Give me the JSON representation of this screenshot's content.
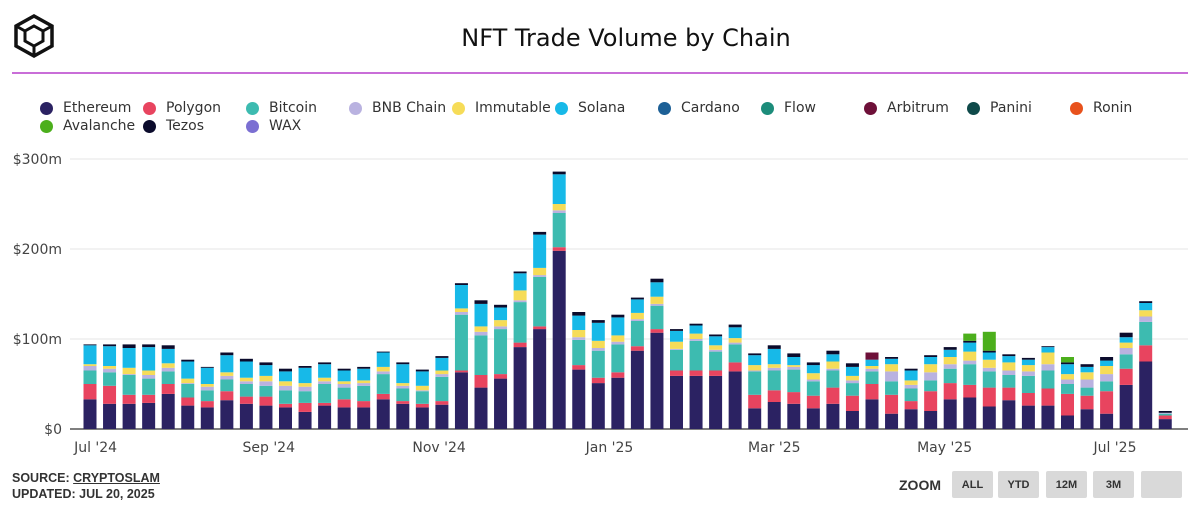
{
  "header": {
    "title": "NFT Trade Volume by Chain"
  },
  "footer": {
    "source_prefix": "SOURCE: ",
    "source_link": "CRYPTOSLAM",
    "updated": "UPDATED: JUL 20, 2025",
    "zoom_label": "ZOOM",
    "zoom_buttons": [
      "ALL",
      "YTD",
      "12M",
      "3M",
      ""
    ]
  },
  "chart_data": {
    "type": "bar",
    "stacked": true,
    "title": "NFT Trade Volume by Chain",
    "xlabel": "",
    "ylabel": "",
    "unit": "$m",
    "ylim": [
      0,
      300
    ],
    "yticks": [
      {
        "value": 0,
        "label": "$0"
      },
      {
        "value": 100,
        "label": "$100m"
      },
      {
        "value": 200,
        "label": "$200m"
      },
      {
        "value": 300,
        "label": "$300m"
      }
    ],
    "x_start": "2024-06-29",
    "x_interval_days": 7,
    "xticks": [
      {
        "date": "2024-07-01",
        "label": "Jul '24"
      },
      {
        "date": "2024-09-01",
        "label": "Sep '24"
      },
      {
        "date": "2024-11-01",
        "label": "Nov '24"
      },
      {
        "date": "2025-01-01",
        "label": "Jan '25"
      },
      {
        "date": "2025-03-01",
        "label": "Mar '25"
      },
      {
        "date": "2025-05-01",
        "label": "May '25"
      },
      {
        "date": "2025-07-01",
        "label": "Jul '25"
      }
    ],
    "grid": true,
    "legend_position": "top",
    "legend": [
      "Ethereum",
      "Polygon",
      "Bitcoin",
      "BNB Chain",
      "Immutable",
      "Solana",
      "Cardano",
      "Flow",
      "Arbitrum",
      "Panini",
      "Ronin",
      "Avalanche",
      "Tezos",
      "WAX"
    ],
    "series": [
      {
        "name": "Ethereum",
        "color": "#2b2262",
        "values": [
          33,
          28,
          28,
          29,
          39,
          26,
          24,
          32,
          28,
          26,
          24,
          19,
          26,
          24,
          24,
          33,
          28,
          24,
          27,
          63,
          46,
          56,
          91,
          111,
          198,
          66,
          51,
          57,
          87,
          107,
          59,
          59,
          59,
          64,
          23,
          30,
          28,
          23,
          28,
          20,
          33,
          17,
          22,
          20,
          33,
          35,
          25,
          32,
          26,
          26,
          15,
          22,
          17,
          49,
          75,
          11
        ]
      },
      {
        "name": "Polygon",
        "color": "#e8445f",
        "values": [
          17,
          20,
          10,
          9,
          11,
          9,
          7,
          10,
          8,
          10,
          4,
          10,
          3,
          9,
          7,
          6,
          3,
          4,
          4,
          2,
          14,
          5,
          5,
          3,
          4,
          5,
          6,
          6,
          5,
          4,
          6,
          6,
          6,
          10,
          15,
          13,
          13,
          14,
          18,
          17,
          17,
          21,
          9,
          22,
          18,
          14,
          21,
          14,
          14,
          19,
          24,
          15,
          25,
          18,
          18,
          4
        ]
      },
      {
        "name": "Bitcoin",
        "color": "#3dbbb0",
        "values": [
          15,
          15,
          22,
          18,
          14,
          15,
          12,
          13,
          14,
          12,
          15,
          13,
          21,
          13,
          17,
          22,
          14,
          14,
          27,
          62,
          44,
          50,
          45,
          55,
          38,
          28,
          30,
          31,
          28,
          26,
          23,
          33,
          21,
          20,
          26,
          22,
          25,
          16,
          19,
          14,
          14,
          15,
          14,
          12,
          16,
          23,
          18,
          14,
          19,
          20,
          11,
          9,
          11,
          16,
          26,
          2
        ]
      },
      {
        "name": "WAX",
        "color": "#7b6fd2",
        "values": [
          0,
          0,
          0,
          0,
          0,
          0,
          0,
          0,
          0,
          0,
          0,
          0,
          0,
          0,
          0,
          0,
          0,
          0,
          0,
          0,
          0,
          0,
          0,
          0,
          0,
          0,
          0,
          0,
          0,
          0,
          0,
          0,
          0,
          0,
          0,
          0,
          0,
          0,
          0,
          0,
          0,
          0,
          0,
          0,
          0,
          0,
          0,
          0,
          0,
          0,
          0,
          0,
          0,
          0,
          0,
          0
        ]
      },
      {
        "name": "BNB Chain",
        "color": "#b9b2e0",
        "values": [
          5,
          4,
          1,
          4,
          4,
          1,
          4,
          4,
          3,
          5,
          5,
          5,
          3,
          4,
          3,
          3,
          3,
          1,
          3,
          3,
          4,
          3,
          2,
          2,
          3,
          3,
          3,
          3,
          2,
          2,
          1,
          2,
          2,
          2,
          1,
          3,
          3,
          2,
          2,
          3,
          3,
          11,
          4,
          9,
          5,
          4,
          4,
          5,
          5,
          7,
          5,
          9,
          8,
          7,
          6,
          1
        ]
      },
      {
        "name": "Immutable",
        "color": "#f6dc58",
        "values": [
          2,
          3,
          7,
          5,
          5,
          5,
          3,
          4,
          4,
          6,
          5,
          4,
          4,
          3,
          3,
          5,
          3,
          5,
          4,
          4,
          6,
          7,
          11,
          8,
          7,
          8,
          8,
          7,
          7,
          8,
          8,
          6,
          5,
          5,
          6,
          4,
          2,
          7,
          8,
          5,
          3,
          8,
          5,
          9,
          8,
          10,
          9,
          9,
          7,
          13,
          6,
          8,
          9,
          6,
          7,
          0
        ]
      },
      {
        "name": "Solana",
        "color": "#17b9e8",
        "values": [
          21,
          22,
          22,
          26,
          16,
          19,
          18,
          19,
          18,
          12,
          11,
          17,
          15,
          12,
          13,
          16,
          21,
          16,
          14,
          26,
          25,
          14,
          19,
          37,
          33,
          16,
          20,
          20,
          15,
          16,
          12,
          9,
          10,
          12,
          11,
          17,
          9,
          9,
          8,
          10,
          7,
          6,
          11,
          8,
          8,
          10,
          8,
          7,
          6,
          6,
          11,
          6,
          6,
          6,
          8,
          0
        ]
      },
      {
        "name": "Cardano",
        "color": "#1d6096",
        "values": [
          0,
          0,
          0,
          0,
          0,
          0,
          0,
          0,
          0,
          0,
          0,
          0,
          0,
          0,
          0,
          0,
          0,
          0,
          0,
          0,
          0,
          0,
          0,
          0,
          0,
          0,
          0,
          0,
          0,
          0,
          0,
          0,
          0,
          0,
          0,
          0,
          0,
          0,
          0,
          0,
          0,
          0,
          0,
          0,
          0,
          0,
          0,
          0,
          0,
          0,
          0,
          0,
          0,
          0,
          0,
          0
        ]
      },
      {
        "name": "Flow",
        "color": "#1c8c7a",
        "values": [
          0,
          0,
          0,
          0,
          0,
          0,
          0,
          0,
          0,
          0,
          0,
          0,
          0,
          0,
          0,
          0,
          0,
          0,
          0,
          0,
          0,
          0,
          0,
          0,
          0,
          0,
          0,
          0,
          0,
          0,
          0,
          0,
          0,
          0,
          0,
          0,
          0,
          0,
          0,
          0,
          0,
          0,
          0,
          0,
          0,
          0,
          0,
          0,
          0,
          0,
          0,
          0,
          0,
          0,
          0,
          0
        ]
      },
      {
        "name": "Ronin",
        "color": "#e8521c",
        "values": [
          0,
          0,
          0,
          0,
          0,
          0,
          0,
          0,
          0,
          0,
          0,
          0,
          0,
          0,
          0,
          0,
          0,
          0,
          0,
          0,
          0,
          0,
          0,
          0,
          0,
          0,
          0,
          0,
          0,
          0,
          0,
          0,
          0,
          0,
          0,
          0,
          0,
          0,
          0,
          0,
          0,
          0,
          0,
          0,
          0,
          0,
          0,
          0,
          0,
          0,
          0,
          0,
          0,
          0,
          0,
          0
        ]
      },
      {
        "name": "Panini",
        "color": "#0f4a4a",
        "values": [
          0,
          0,
          0,
          0,
          0,
          0,
          0,
          0,
          0,
          0,
          0,
          0,
          0,
          0,
          0,
          0,
          0,
          0,
          0,
          0,
          0,
          0,
          0,
          0,
          0,
          0,
          0,
          0,
          0,
          0,
          0,
          0,
          0,
          0,
          0,
          0,
          0,
          0,
          0,
          0,
          0,
          0,
          0,
          0,
          0,
          0,
          0,
          0,
          0,
          0,
          0,
          0,
          0,
          0,
          0,
          0
        ]
      },
      {
        "name": "Tezos",
        "color": "#0b0b2c",
        "values": [
          1,
          2,
          4,
          3,
          4,
          2,
          1,
          3,
          3,
          3,
          3,
          2,
          2,
          2,
          2,
          1,
          2,
          2,
          2,
          2,
          4,
          3,
          2,
          3,
          3,
          4,
          3,
          3,
          2,
          4,
          2,
          2,
          2,
          3,
          2,
          4,
          4,
          3,
          4,
          4,
          0,
          2,
          2,
          2,
          3,
          2,
          2,
          2,
          2,
          1,
          2,
          3,
          4,
          5,
          2,
          2
        ]
      },
      {
        "name": "Arbitrum",
        "color": "#6e1039",
        "values": [
          0,
          0,
          0,
          0,
          0,
          0,
          0,
          0,
          0,
          0,
          0,
          0,
          0,
          0,
          0,
          0,
          0,
          0,
          0,
          0,
          0,
          0,
          0,
          0,
          0,
          0,
          0,
          0,
          0,
          0,
          0,
          0,
          0,
          0,
          0,
          0,
          0,
          0,
          0,
          0,
          8,
          0,
          0,
          0,
          0,
          0,
          0,
          0,
          0,
          0,
          0,
          0,
          0,
          0,
          0,
          0
        ]
      },
      {
        "name": "Avalanche",
        "color": "#4caf1c",
        "values": [
          0,
          0,
          0,
          0,
          0,
          0,
          0,
          0,
          0,
          0,
          0,
          0,
          0,
          0,
          0,
          0,
          0,
          0,
          0,
          0,
          0,
          0,
          0,
          0,
          0,
          0,
          0,
          0,
          0,
          0,
          0,
          0,
          0,
          0,
          0,
          0,
          0,
          0,
          0,
          0,
          0,
          0,
          0,
          0,
          0,
          8,
          21,
          0,
          0,
          0,
          6,
          0,
          0,
          0,
          0,
          0
        ]
      }
    ]
  }
}
